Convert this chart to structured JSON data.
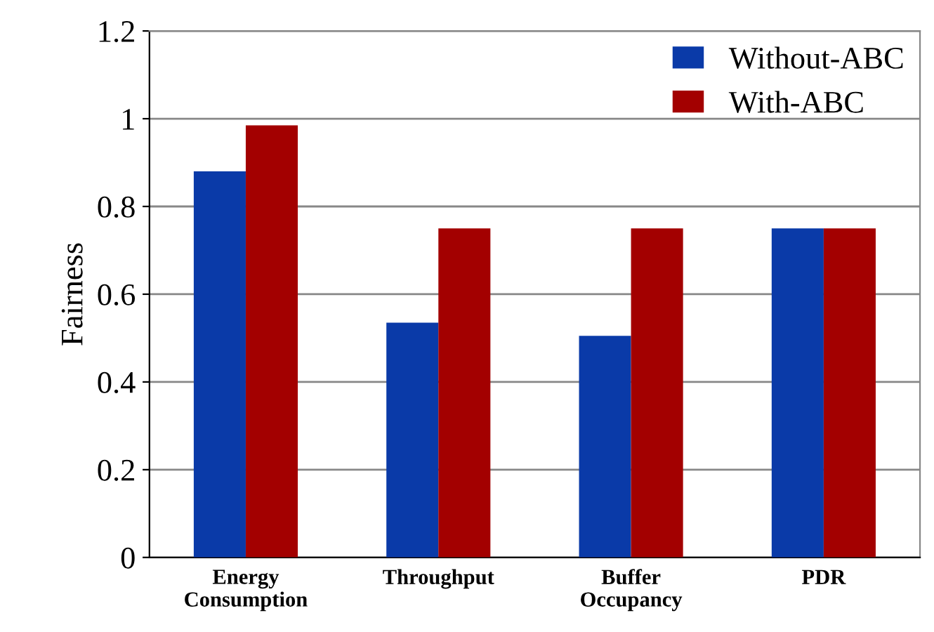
{
  "chart_data": {
    "type": "bar",
    "ylabel": "Fairness",
    "categories": [
      "Energy\nConsumption",
      "Throughput",
      "Buffer\nOccupancy",
      "PDR"
    ],
    "series": [
      {
        "name": "Without-ABC",
        "color": "#0a3aa8",
        "values": [
          0.88,
          0.535,
          0.505,
          0.75
        ]
      },
      {
        "name": "With-ABC",
        "color": "#a30000",
        "values": [
          0.985,
          0.75,
          0.75,
          0.75
        ]
      }
    ],
    "ylim": [
      0,
      1.2
    ],
    "yticks": [
      0,
      0.2,
      0.4,
      0.6,
      0.8,
      1,
      1.2
    ],
    "grid": "y",
    "legend": "top right"
  }
}
